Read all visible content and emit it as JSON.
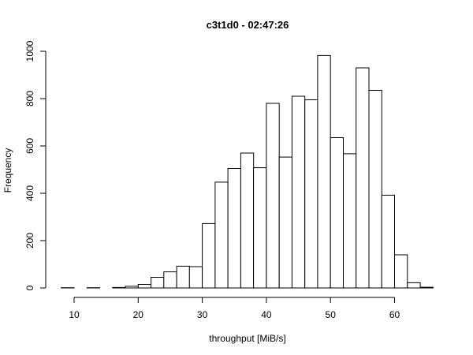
{
  "chart_data": {
    "type": "bar",
    "title": "c3t1d0 - 02:47:26",
    "xlabel": "throughput [MiB/s]",
    "ylabel": "Frequency",
    "bin_width": 2,
    "bins": [
      {
        "x0": 8,
        "x1": 10,
        "value": 1
      },
      {
        "x0": 10,
        "x1": 12,
        "value": 0
      },
      {
        "x0": 12,
        "x1": 14,
        "value": 1
      },
      {
        "x0": 14,
        "x1": 16,
        "value": 0
      },
      {
        "x0": 16,
        "x1": 18,
        "value": 2
      },
      {
        "x0": 18,
        "x1": 20,
        "value": 7
      },
      {
        "x0": 20,
        "x1": 22,
        "value": 15
      },
      {
        "x0": 22,
        "x1": 24,
        "value": 45
      },
      {
        "x0": 24,
        "x1": 26,
        "value": 68
      },
      {
        "x0": 26,
        "x1": 28,
        "value": 92
      },
      {
        "x0": 28,
        "x1": 30,
        "value": 90
      },
      {
        "x0": 30,
        "x1": 32,
        "value": 272
      },
      {
        "x0": 32,
        "x1": 34,
        "value": 447
      },
      {
        "x0": 34,
        "x1": 36,
        "value": 505
      },
      {
        "x0": 36,
        "x1": 38,
        "value": 570
      },
      {
        "x0": 38,
        "x1": 40,
        "value": 508
      },
      {
        "x0": 40,
        "x1": 42,
        "value": 780
      },
      {
        "x0": 42,
        "x1": 44,
        "value": 553
      },
      {
        "x0": 44,
        "x1": 46,
        "value": 810
      },
      {
        "x0": 46,
        "x1": 48,
        "value": 795
      },
      {
        "x0": 48,
        "x1": 50,
        "value": 982
      },
      {
        "x0": 50,
        "x1": 52,
        "value": 635
      },
      {
        "x0": 52,
        "x1": 54,
        "value": 567
      },
      {
        "x0": 54,
        "x1": 56,
        "value": 930
      },
      {
        "x0": 56,
        "x1": 58,
        "value": 835
      },
      {
        "x0": 58,
        "x1": 60,
        "value": 392
      },
      {
        "x0": 60,
        "x1": 62,
        "value": 140
      },
      {
        "x0": 62,
        "x1": 64,
        "value": 22
      },
      {
        "x0": 64,
        "x1": 66,
        "value": 3
      }
    ],
    "xlim": [
      8,
      66
    ],
    "ylim": [
      0,
      1000
    ],
    "x_ticks": [
      10,
      20,
      30,
      40,
      50,
      60
    ],
    "y_ticks": [
      0,
      200,
      400,
      600,
      800,
      1000
    ],
    "grid": false,
    "legend": "none"
  }
}
